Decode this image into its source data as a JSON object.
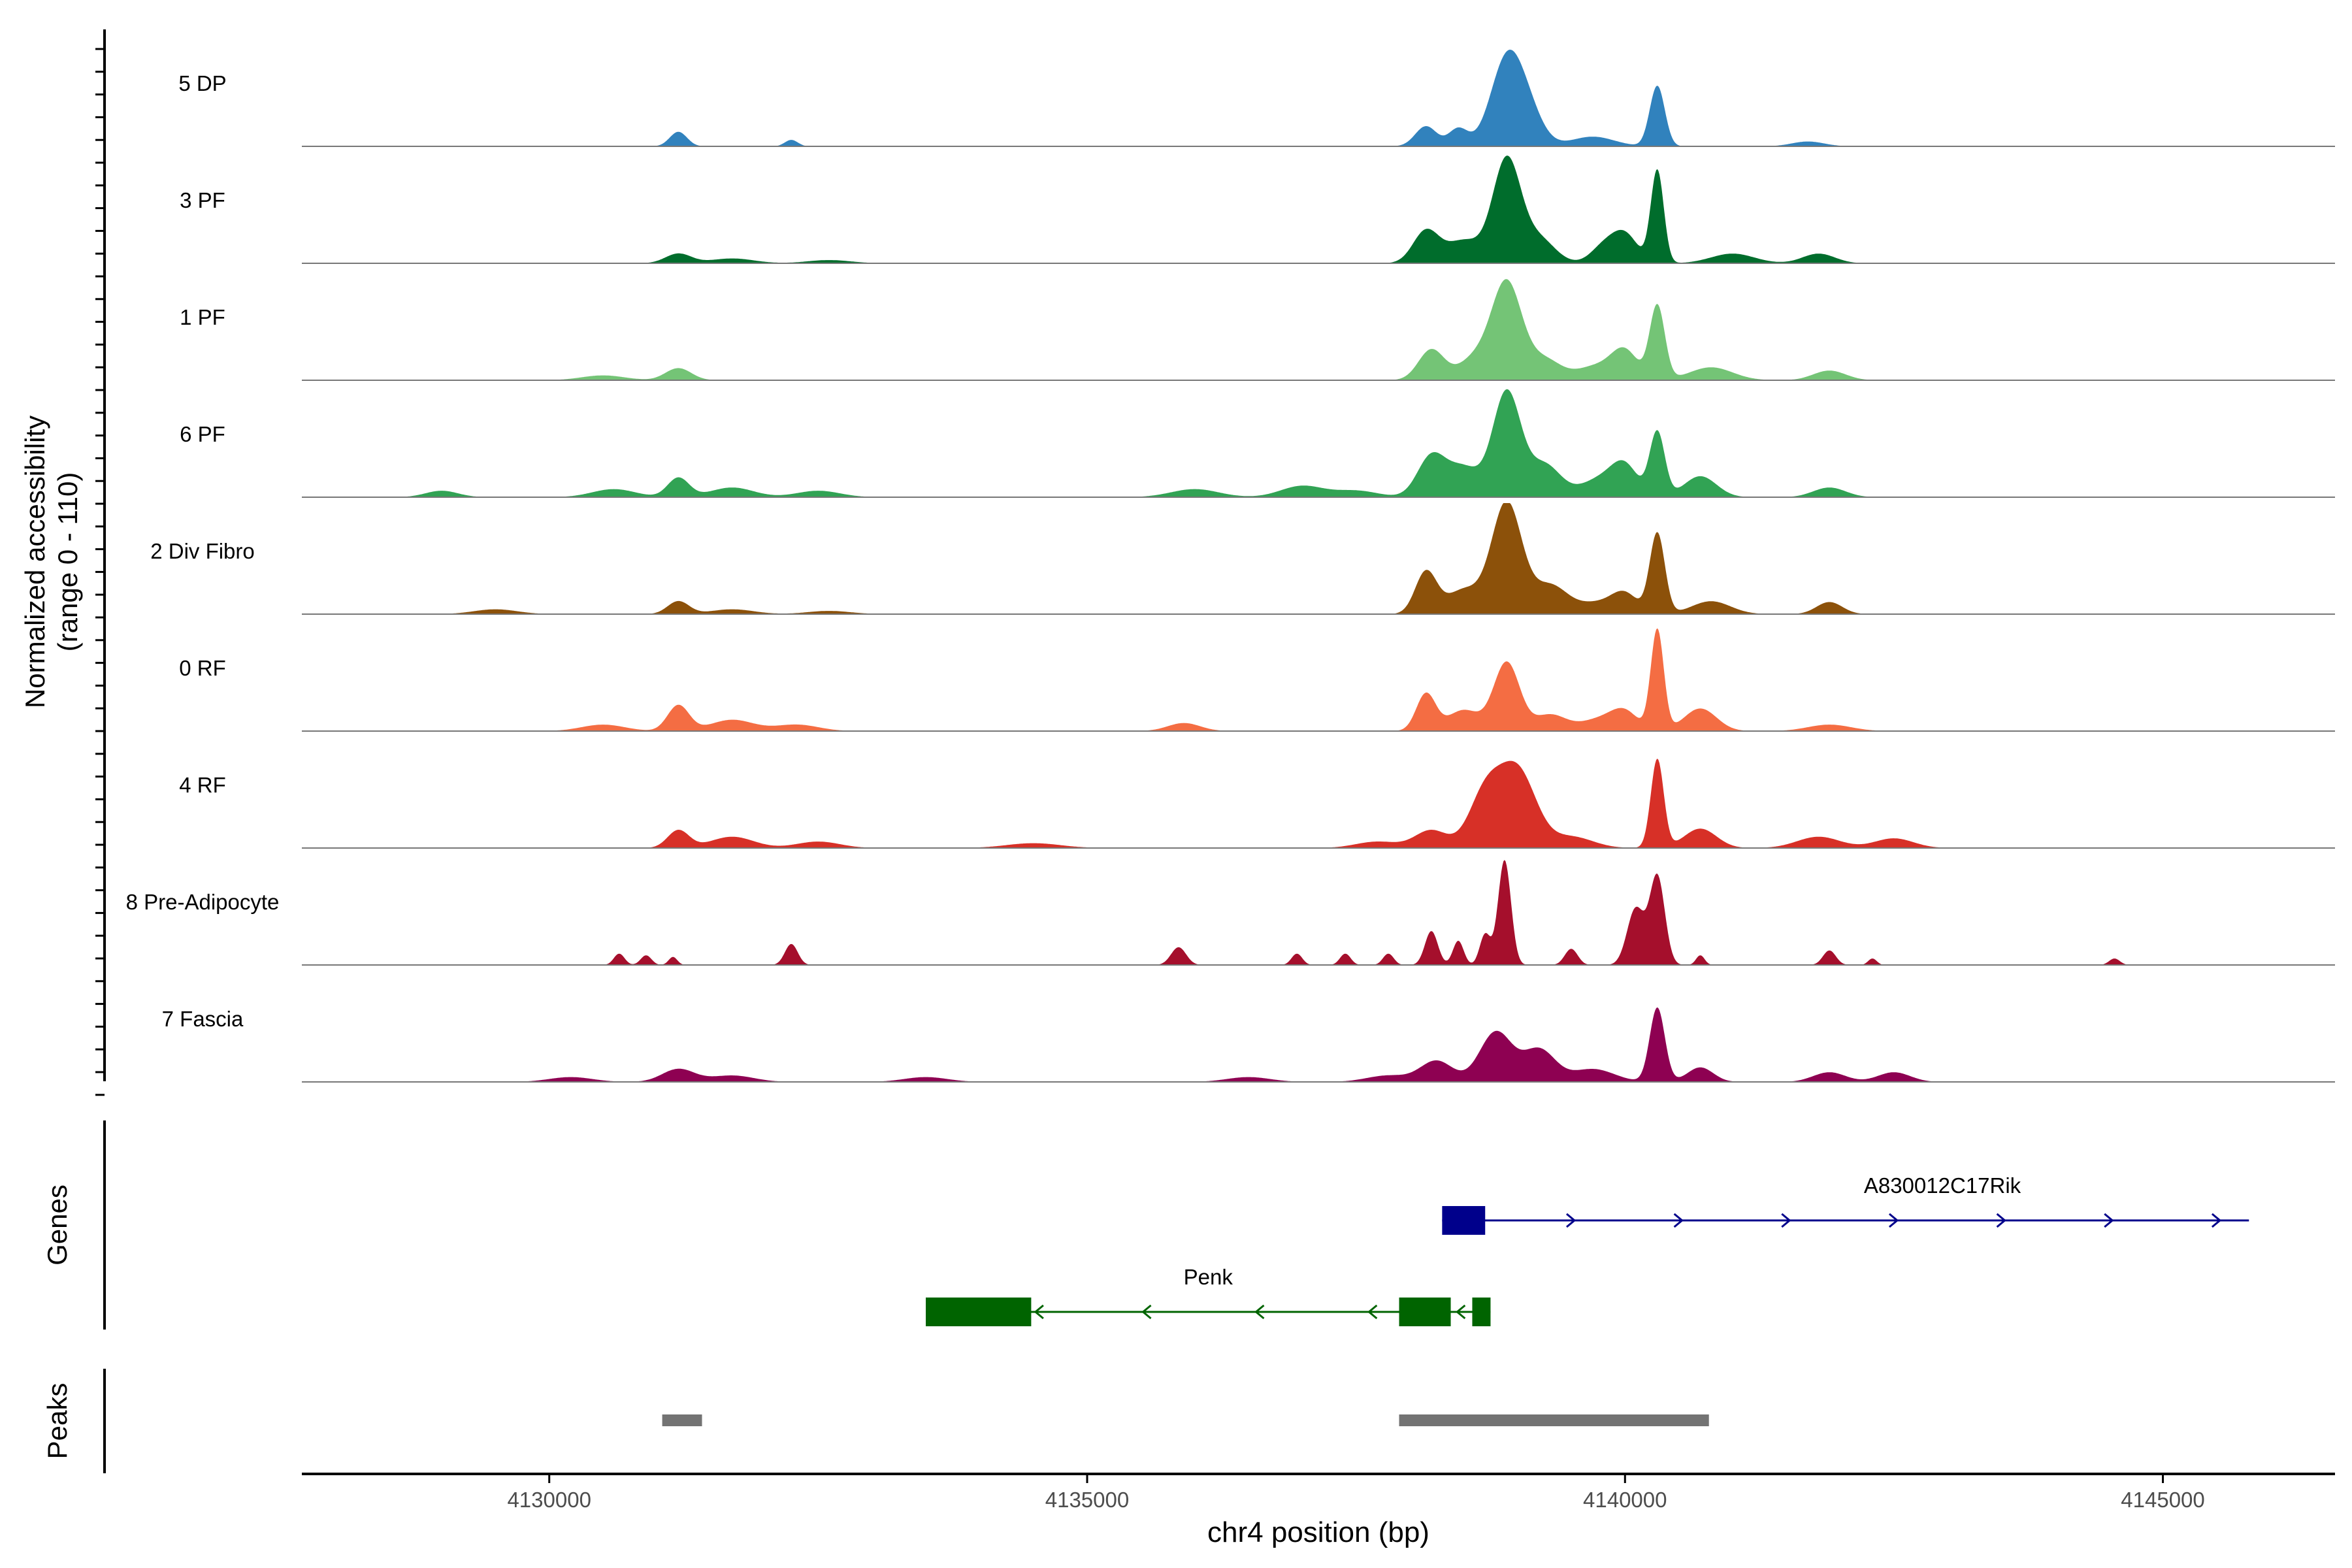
{
  "chart_data": {
    "type": "area",
    "title": "",
    "ylabel_line1": "Normalized accessibility",
    "ylabel_line2": "(range 0 - 110)",
    "xlabel": "chr4 position (bp)",
    "xlim": [
      4127700,
      4146600
    ],
    "ylim": [
      0,
      110
    ],
    "x_ticks": [
      4130000,
      4135000,
      4140000,
      4145000
    ],
    "x_tick_labels": [
      "4130000",
      "4135000",
      "4140000",
      "4145000"
    ],
    "series": [
      {
        "name": "5 DP",
        "color": "#3182BD",
        "peaks": [
          [
            4131200,
            18,
            80
          ],
          [
            4132250,
            8,
            60
          ],
          [
            4138150,
            25,
            100
          ],
          [
            4138450,
            22,
            90
          ],
          [
            4138900,
            105,
            150
          ],
          [
            4139100,
            35,
            140
          ],
          [
            4139700,
            12,
            200
          ],
          [
            4140300,
            75,
            70
          ],
          [
            4141700,
            6,
            150
          ]
        ]
      },
      {
        "name": "3 PF",
        "color": "#006D2C",
        "peaks": [
          [
            4131200,
            12,
            120
          ],
          [
            4131700,
            6,
            200
          ],
          [
            4132600,
            4,
            200
          ],
          [
            4138150,
            40,
            120
          ],
          [
            4138500,
            28,
            160
          ],
          [
            4138900,
            128,
            130
          ],
          [
            4139200,
            30,
            150
          ],
          [
            4139800,
            20,
            120
          ],
          [
            4140000,
            35,
            120
          ],
          [
            4140300,
            115,
            60
          ],
          [
            4141000,
            12,
            200
          ],
          [
            4141800,
            12,
            150
          ]
        ]
      },
      {
        "name": "1 PF",
        "color": "#74C476",
        "peaks": [
          [
            4131200,
            15,
            120
          ],
          [
            4130500,
            6,
            200
          ],
          [
            4138200,
            38,
            120
          ],
          [
            4138600,
            26,
            150
          ],
          [
            4138900,
            120,
            140
          ],
          [
            4139250,
            25,
            150
          ],
          [
            4139750,
            18,
            200
          ],
          [
            4140000,
            32,
            120
          ],
          [
            4140300,
            92,
            70
          ],
          [
            4140800,
            16,
            200
          ],
          [
            4141900,
            12,
            150
          ]
        ]
      },
      {
        "name": "6 PF",
        "color": "#31A354",
        "peaks": [
          [
            4129000,
            8,
            150
          ],
          [
            4130600,
            10,
            200
          ],
          [
            4131200,
            24,
            100
          ],
          [
            4131700,
            12,
            200
          ],
          [
            4132500,
            8,
            200
          ],
          [
            4136000,
            10,
            220
          ],
          [
            4137000,
            14,
            200
          ],
          [
            4137500,
            8,
            200
          ],
          [
            4138200,
            50,
            130
          ],
          [
            4138500,
            36,
            150
          ],
          [
            4138900,
            130,
            130
          ],
          [
            4139250,
            40,
            150
          ],
          [
            4139800,
            24,
            200
          ],
          [
            4140000,
            30,
            120
          ],
          [
            4140300,
            80,
            70
          ],
          [
            4140700,
            26,
            150
          ],
          [
            4141900,
            12,
            150
          ]
        ]
      },
      {
        "name": "2 Div Fibro",
        "color": "#8C510A",
        "peaks": [
          [
            4129500,
            6,
            200
          ],
          [
            4131200,
            16,
            100
          ],
          [
            4131700,
            6,
            200
          ],
          [
            4132600,
            4,
            200
          ],
          [
            4138150,
            52,
            100
          ],
          [
            4138500,
            30,
            160
          ],
          [
            4138900,
            138,
            140
          ],
          [
            4139300,
            35,
            160
          ],
          [
            4139750,
            14,
            200
          ],
          [
            4140000,
            22,
            120
          ],
          [
            4140300,
            100,
            70
          ],
          [
            4140800,
            16,
            180
          ],
          [
            4141900,
            15,
            120
          ]
        ]
      },
      {
        "name": "0 RF",
        "color": "#F46D43",
        "peaks": [
          [
            4130500,
            8,
            200
          ],
          [
            4131200,
            32,
            100
          ],
          [
            4131700,
            14,
            200
          ],
          [
            4132300,
            8,
            200
          ],
          [
            4135900,
            10,
            150
          ],
          [
            4138150,
            46,
            90
          ],
          [
            4138500,
            26,
            150
          ],
          [
            4138900,
            85,
            120
          ],
          [
            4139300,
            20,
            150
          ],
          [
            4139800,
            16,
            200
          ],
          [
            4140000,
            18,
            120
          ],
          [
            4140300,
            125,
            60
          ],
          [
            4140700,
            28,
            150
          ],
          [
            4141900,
            8,
            200
          ]
        ]
      },
      {
        "name": "4 RF",
        "color": "#D73027",
        "peaks": [
          [
            4131200,
            22,
            100
          ],
          [
            4131700,
            14,
            200
          ],
          [
            4132500,
            8,
            200
          ],
          [
            4134500,
            6,
            250
          ],
          [
            4137700,
            8,
            200
          ],
          [
            4138200,
            22,
            150
          ],
          [
            4138700,
            66,
            150
          ],
          [
            4139000,
            95,
            170
          ],
          [
            4139500,
            14,
            200
          ],
          [
            4140300,
            110,
            60
          ],
          [
            4140700,
            24,
            150
          ],
          [
            4141800,
            14,
            200
          ],
          [
            4142500,
            12,
            180
          ]
        ]
      },
      {
        "name": "8 Pre-Adipocyte",
        "color": "#A50F2C",
        "peaks": [
          [
            4130650,
            14,
            50
          ],
          [
            4130900,
            12,
            50
          ],
          [
            4131150,
            10,
            40
          ],
          [
            4132250,
            26,
            60
          ],
          [
            4135850,
            22,
            70
          ],
          [
            4136950,
            14,
            50
          ],
          [
            4137400,
            14,
            50
          ],
          [
            4137800,
            14,
            50
          ],
          [
            4138200,
            42,
            60
          ],
          [
            4138450,
            30,
            50
          ],
          [
            4138700,
            38,
            50
          ],
          [
            4138880,
            130,
            60
          ],
          [
            4139500,
            20,
            60
          ],
          [
            4140100,
            70,
            80
          ],
          [
            4140300,
            110,
            70
          ],
          [
            4140700,
            12,
            40
          ],
          [
            4141900,
            18,
            60
          ],
          [
            4142300,
            8,
            40
          ],
          [
            4144550,
            8,
            50
          ]
        ]
      },
      {
        "name": "7 Fascia",
        "color": "#8E0152",
        "peaks": [
          [
            4130200,
            6,
            200
          ],
          [
            4131200,
            16,
            150
          ],
          [
            4131700,
            8,
            200
          ],
          [
            4133500,
            6,
            200
          ],
          [
            4136500,
            6,
            200
          ],
          [
            4137800,
            8,
            200
          ],
          [
            4138250,
            26,
            150
          ],
          [
            4138800,
            62,
            150
          ],
          [
            4139200,
            40,
            150
          ],
          [
            4139700,
            16,
            200
          ],
          [
            4140300,
            92,
            70
          ],
          [
            4140700,
            18,
            120
          ],
          [
            4141900,
            12,
            150
          ],
          [
            4142500,
            12,
            150
          ]
        ]
      }
    ],
    "genes": {
      "label": "Genes",
      "A830012C17Rik": {
        "name": "A830012C17Rik",
        "color": "#00008B",
        "start": 4138300,
        "end": 4145800,
        "exon": [
          4138300,
          4138700
        ],
        "strand": "+"
      },
      "Penk": {
        "name": "Penk",
        "color": "#006400",
        "start": 4133500,
        "end": 4138750,
        "exons": [
          [
            4133500,
            4134480
          ],
          [
            4137900,
            4138380
          ],
          [
            4138580,
            4138750
          ]
        ],
        "strand": "-"
      }
    },
    "peaks_track": {
      "label": "Peaks",
      "color": "#737373",
      "regions": [
        [
          4131050,
          4131420
        ],
        [
          4137900,
          4140780
        ]
      ]
    }
  }
}
